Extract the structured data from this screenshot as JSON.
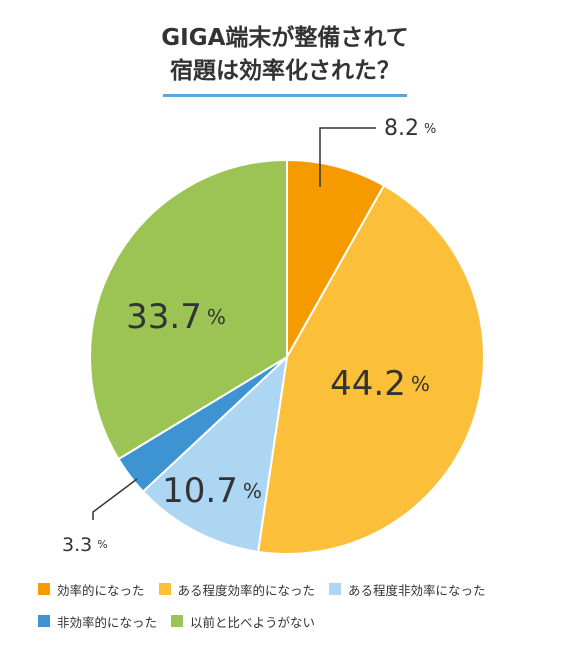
{
  "title_line1": "GIGA端末が整備されて",
  "title_line2": "宿題は効率化された？",
  "chart_data": {
    "type": "pie",
    "unit": "%",
    "slices": [
      {
        "label": "効率的になった",
        "value": 8.2,
        "display": "8.2",
        "color": "#f59b00"
      },
      {
        "label": "ある程度効率的になった",
        "value": 44.2,
        "display": "44.2",
        "color": "#fbbf3a"
      },
      {
        "label": "ある程度非効率になった",
        "value": 10.7,
        "display": "10.7",
        "color": "#acd6f2"
      },
      {
        "label": "非効率的になった",
        "value": 3.3,
        "display": "3.3",
        "color": "#3e93d2"
      },
      {
        "label": "以前と比べようがない",
        "value": 33.7,
        "display": "33.7",
        "color": "#9cc454"
      }
    ],
    "legend_rows": [
      [
        0,
        1,
        2
      ],
      [
        3,
        4
      ]
    ]
  }
}
